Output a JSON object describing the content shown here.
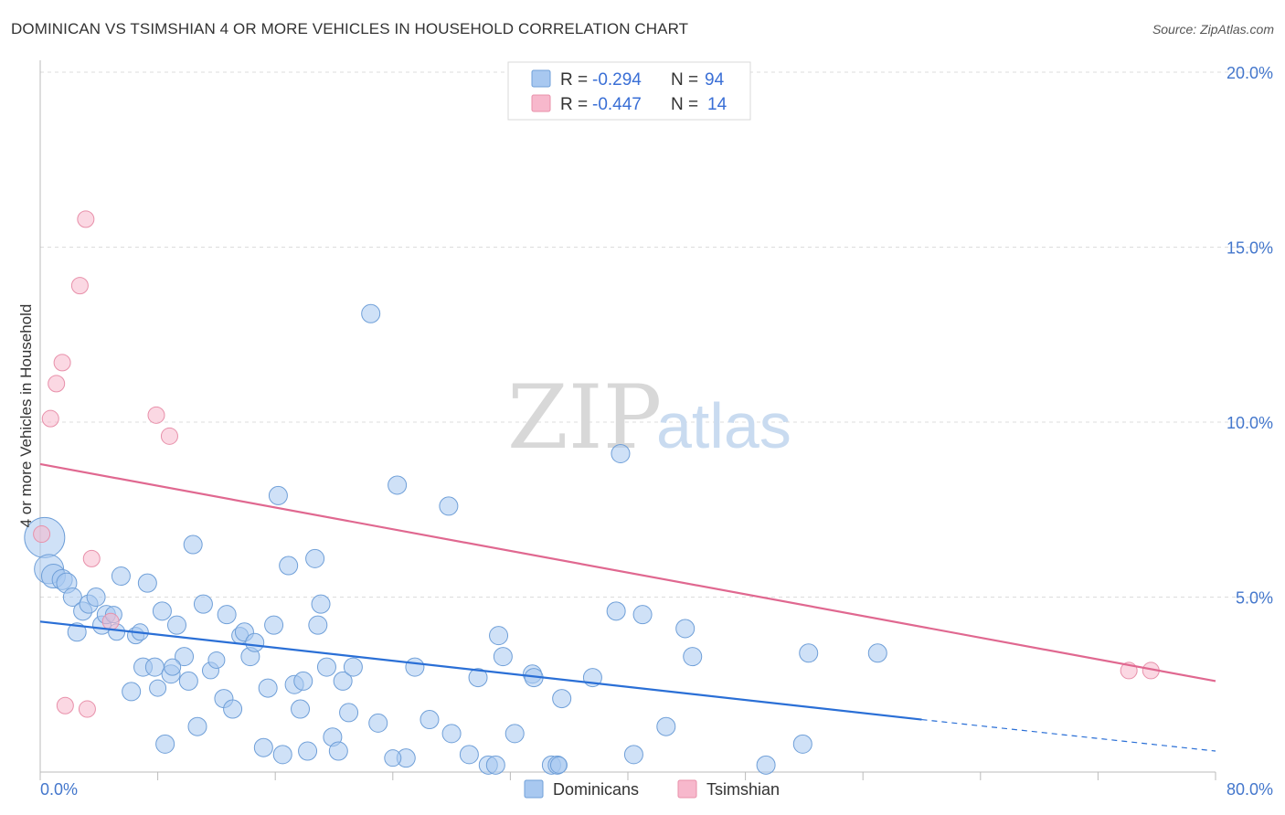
{
  "title": "DOMINICAN VS TSIMSHIAN 4 OR MORE VEHICLES IN HOUSEHOLD CORRELATION CHART",
  "source": "Source: ZipAtlas.com",
  "watermark": {
    "zip": "ZIP",
    "atlas": "atlas"
  },
  "legend": {
    "r_label": "R =",
    "n_label": "N =",
    "rows": [
      {
        "name": "Dominicans",
        "r": "-0.294",
        "n": "94",
        "color": "#a8c8f0"
      },
      {
        "name": "Tsimshian",
        "r": "-0.447",
        "n": "14",
        "color": "#f7b8cc"
      }
    ]
  },
  "chart_data": {
    "type": "scatter",
    "title": "DOMINICAN VS TSIMSHIAN 4 OR MORE VEHICLES IN HOUSEHOLD CORRELATION CHART",
    "xlabel": "",
    "ylabel": "4 or more Vehicles in Household",
    "xlim": [
      0,
      80
    ],
    "ylim": [
      0,
      20
    ],
    "x_tick_labels": [
      "0.0%",
      "80.0%"
    ],
    "y_tick_labels": [
      "5.0%",
      "10.0%",
      "15.0%",
      "20.0%"
    ],
    "y_ticks": [
      5,
      10,
      15,
      20
    ],
    "grid": true,
    "series": [
      {
        "name": "Dominicans",
        "color": "#a8c8f0",
        "stroke": "#6f9fd8",
        "trend": {
          "x0": 0,
          "y0": 4.3,
          "x1": 60,
          "y1": 1.5,
          "dash_to_x": 80,
          "dash_to_y": 0.6,
          "color": "#2a6fd6"
        },
        "points": [
          [
            0.3,
            6.7,
            22
          ],
          [
            0.6,
            5.8,
            16
          ],
          [
            0.9,
            5.6,
            13
          ],
          [
            1.5,
            5.5,
            11
          ],
          [
            1.8,
            5.4,
            11
          ],
          [
            2.2,
            5.0,
            10
          ],
          [
            2.5,
            4.0,
            10
          ],
          [
            2.9,
            4.6,
            10
          ],
          [
            3.3,
            4.8,
            10
          ],
          [
            3.8,
            5.0,
            10
          ],
          [
            4.2,
            4.2,
            10
          ],
          [
            4.5,
            4.5,
            10
          ],
          [
            5.0,
            4.5,
            9
          ],
          [
            5.2,
            4.0,
            9
          ],
          [
            5.5,
            5.6,
            10
          ],
          [
            6.2,
            2.3,
            10
          ],
          [
            6.5,
            3.9,
            9
          ],
          [
            6.8,
            4.0,
            9
          ],
          [
            7.0,
            3.0,
            10
          ],
          [
            7.3,
            5.4,
            10
          ],
          [
            7.8,
            3.0,
            10
          ],
          [
            8.0,
            2.4,
            9
          ],
          [
            8.3,
            4.6,
            10
          ],
          [
            8.5,
            0.8,
            10
          ],
          [
            8.9,
            2.8,
            10
          ],
          [
            9.3,
            4.2,
            10
          ],
          [
            9.8,
            3.3,
            10
          ],
          [
            10.1,
            2.6,
            10
          ],
          [
            10.4,
            6.5,
            10
          ],
          [
            10.7,
            1.3,
            10
          ],
          [
            11.1,
            4.8,
            10
          ],
          [
            11.6,
            2.9,
            9
          ],
          [
            12.0,
            3.2,
            9
          ],
          [
            12.5,
            2.1,
            10
          ],
          [
            12.7,
            4.5,
            10
          ],
          [
            13.1,
            1.8,
            10
          ],
          [
            13.6,
            3.9,
            9
          ],
          [
            13.9,
            4.0,
            10
          ],
          [
            14.3,
            3.3,
            10
          ],
          [
            14.6,
            3.7,
            10
          ],
          [
            15.2,
            0.7,
            10
          ],
          [
            15.5,
            2.4,
            10
          ],
          [
            15.9,
            4.2,
            10
          ],
          [
            16.2,
            7.9,
            10
          ],
          [
            16.5,
            0.5,
            10
          ],
          [
            16.9,
            5.9,
            10
          ],
          [
            17.3,
            2.5,
            10
          ],
          [
            17.7,
            1.8,
            10
          ],
          [
            17.9,
            2.6,
            10
          ],
          [
            18.2,
            0.6,
            10
          ],
          [
            18.7,
            6.1,
            10
          ],
          [
            18.9,
            4.2,
            10
          ],
          [
            19.1,
            4.8,
            10
          ],
          [
            19.5,
            3.0,
            10
          ],
          [
            19.9,
            1.0,
            10
          ],
          [
            20.3,
            0.6,
            10
          ],
          [
            20.6,
            2.6,
            10
          ],
          [
            21.0,
            1.7,
            10
          ],
          [
            21.3,
            3.0,
            10
          ],
          [
            22.5,
            13.1,
            10
          ],
          [
            23.0,
            1.4,
            10
          ],
          [
            24.3,
            8.2,
            10
          ],
          [
            24.9,
            0.4,
            10
          ],
          [
            25.5,
            3.0,
            10
          ],
          [
            26.5,
            1.5,
            10
          ],
          [
            27.8,
            7.6,
            10
          ],
          [
            28.0,
            1.1,
            10
          ],
          [
            29.2,
            0.5,
            10
          ],
          [
            29.8,
            2.7,
            10
          ],
          [
            30.5,
            0.2,
            10
          ],
          [
            31.0,
            0.2,
            10
          ],
          [
            31.2,
            3.9,
            10
          ],
          [
            31.5,
            3.3,
            10
          ],
          [
            32.3,
            1.1,
            10
          ],
          [
            33.5,
            2.8,
            10
          ],
          [
            33.6,
            2.7,
            10
          ],
          [
            34.8,
            0.2,
            10
          ],
          [
            35.2,
            0.2,
            10
          ],
          [
            35.5,
            2.1,
            10
          ],
          [
            37.6,
            2.7,
            10
          ],
          [
            39.2,
            4.6,
            10
          ],
          [
            39.5,
            9.1,
            10
          ],
          [
            40.4,
            0.5,
            10
          ],
          [
            41.0,
            4.5,
            10
          ],
          [
            42.6,
            1.3,
            10
          ],
          [
            43.9,
            4.1,
            10
          ],
          [
            44.4,
            3.3,
            10
          ],
          [
            49.4,
            0.2,
            10
          ],
          [
            51.9,
            0.8,
            10
          ],
          [
            52.3,
            3.4,
            10
          ],
          [
            57.0,
            3.4,
            10
          ],
          [
            35.3,
            0.2,
            9
          ],
          [
            24.0,
            0.4,
            9
          ],
          [
            9.0,
            3.0,
            9
          ]
        ]
      },
      {
        "name": "Tsimshian",
        "color": "#f7b8cc",
        "stroke": "#e890aa",
        "trend": {
          "x0": 0,
          "y0": 8.8,
          "x1": 80,
          "y1": 2.6,
          "color": "#e06890"
        },
        "points": [
          [
            0.1,
            6.8,
            9
          ],
          [
            0.7,
            10.1,
            9
          ],
          [
            1.1,
            11.1,
            9
          ],
          [
            1.5,
            11.7,
            9
          ],
          [
            1.7,
            1.9,
            9
          ],
          [
            2.7,
            13.9,
            9
          ],
          [
            3.1,
            15.8,
            9
          ],
          [
            3.2,
            1.8,
            9
          ],
          [
            3.5,
            6.1,
            9
          ],
          [
            4.8,
            4.3,
            9
          ],
          [
            7.9,
            10.2,
            9
          ],
          [
            8.8,
            9.6,
            9
          ],
          [
            74.1,
            2.9,
            9
          ],
          [
            75.6,
            2.9,
            9
          ]
        ]
      }
    ],
    "legend_position": "top-center"
  }
}
